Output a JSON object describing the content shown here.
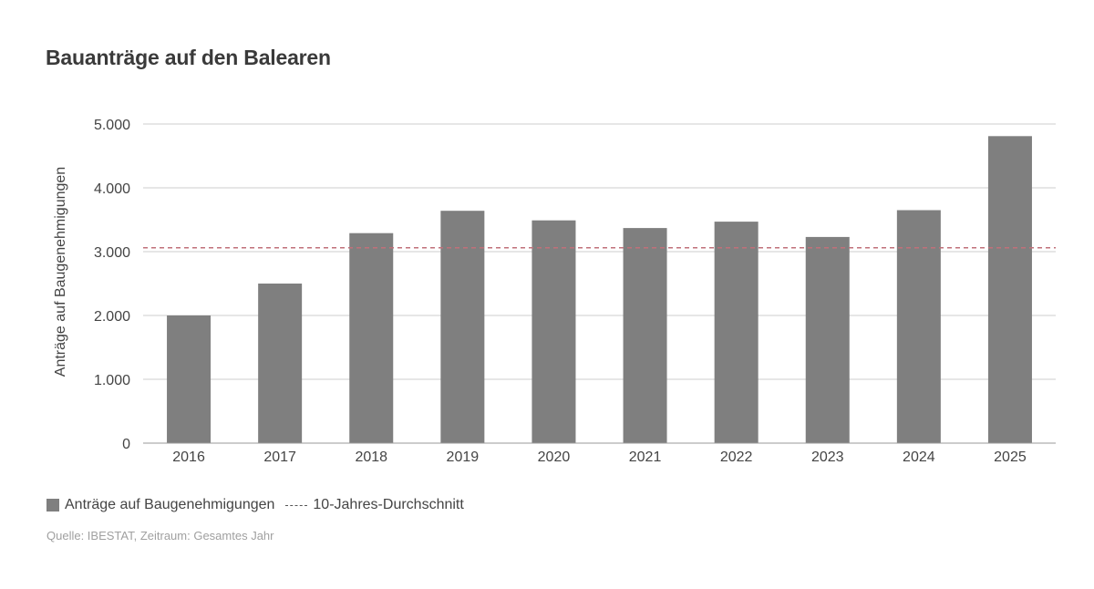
{
  "title": "Bauanträge auf den Balearen",
  "source": "Quelle: IBESTAT, Zeitraum: Gesamtes Jahr",
  "legend": {
    "bars": "Anträge auf Baugenehmigungen",
    "line": "10-Jahres-Durchschnitt"
  },
  "colors": {
    "bar": "#7f7f7f",
    "average_line": "#c0707a",
    "grid": "#cccccc",
    "axis": "#9a9a9a"
  },
  "chart_data": {
    "type": "bar",
    "title": "Bauanträge auf den Balearen",
    "xlabel": "",
    "ylabel": "Anträge auf Baugenehmigungen",
    "categories": [
      "2016",
      "2017",
      "2018",
      "2019",
      "2020",
      "2021",
      "2022",
      "2023",
      "2024",
      "2025"
    ],
    "series": [
      {
        "name": "Anträge auf Baugenehmigungen",
        "values": [
          2000,
          2500,
          3290,
          3640,
          3490,
          3370,
          3470,
          3230,
          3650,
          4810
        ]
      }
    ],
    "reference_line": {
      "name": "10-Jahres-Durchschnitt",
      "value": 3060,
      "style": "dashed"
    },
    "ylim": [
      0,
      5000
    ],
    "yticks": [
      0,
      1000,
      2000,
      3000,
      4000,
      5000
    ],
    "ytick_labels": [
      "0",
      "1.000",
      "2.000",
      "3.000",
      "4.000",
      "5.000"
    ],
    "grid": true,
    "legend_position": "bottom-left"
  }
}
